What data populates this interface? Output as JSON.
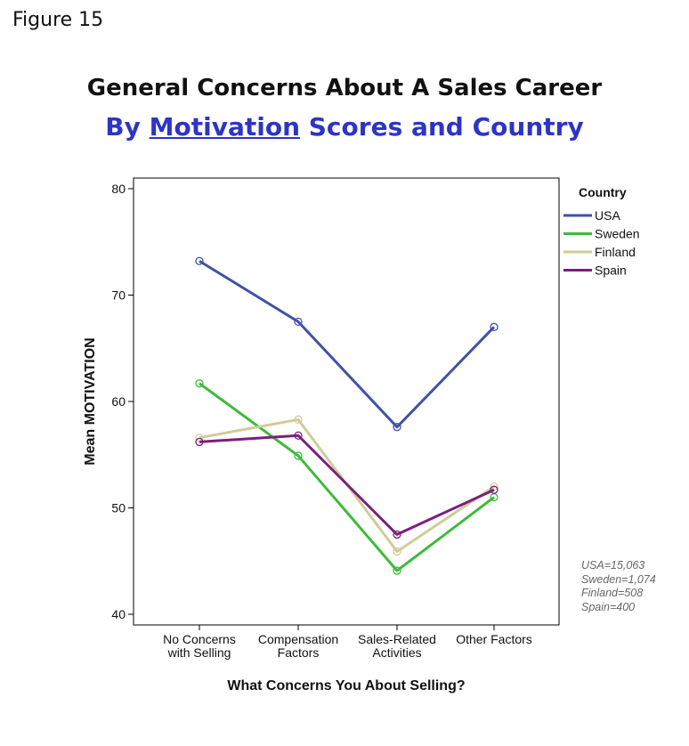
{
  "figure_label": "Figure 15",
  "title": {
    "line1": "General Concerns About A Sales Career",
    "line2_prefix": "By ",
    "line2_underlined": "Motivation",
    "line2_suffix": " Scores and Country"
  },
  "sample_notes": [
    "USA=15,063",
    "Sweden=1,074",
    "Finland=508",
    "Spain=400"
  ],
  "chart_data": {
    "type": "line",
    "title": "General Concerns About A Sales Career By Motivation Scores and Country",
    "xlabel": "What Concerns You About Selling?",
    "ylabel": "Mean MOTIVATION",
    "categories": [
      [
        "No Concerns",
        "with Selling"
      ],
      [
        "Compensation",
        "Factors"
      ],
      [
        "Sales-Related",
        "Activities"
      ],
      [
        "Other Factors"
      ]
    ],
    "ylim": [
      39,
      81
    ],
    "yticks": [
      40,
      50,
      60,
      70,
      80
    ],
    "grid": false,
    "legend_title": "Country",
    "legend_position": "right",
    "series": [
      {
        "name": "USA",
        "color": "#3f51a8",
        "values": [
          73.2,
          67.5,
          57.6,
          67.0
        ]
      },
      {
        "name": "Sweden",
        "color": "#3dbb3a",
        "values": [
          61.7,
          54.9,
          44.1,
          51.0
        ]
      },
      {
        "name": "Finland",
        "color": "#cfcc99",
        "values": [
          56.6,
          58.3,
          45.9,
          52.0
        ]
      },
      {
        "name": "Spain",
        "color": "#7b1f7d",
        "values": [
          56.2,
          56.8,
          47.5,
          51.7
        ]
      }
    ]
  }
}
